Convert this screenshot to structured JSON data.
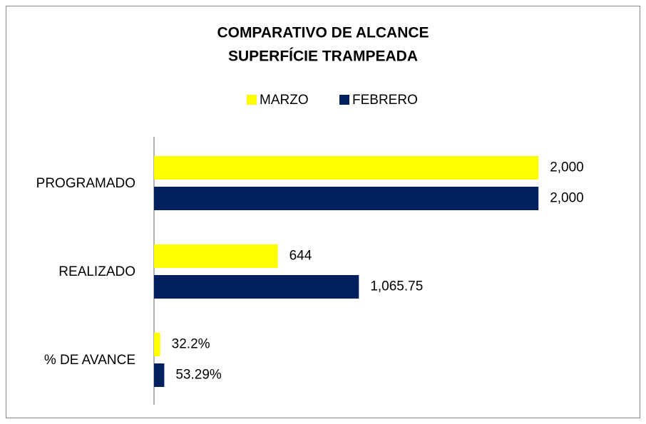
{
  "chart_data": {
    "type": "hbar",
    "title": "COMPARATIVO DE ALCANCE",
    "subtitle": "SUPERFÍCIE TRAMPEADA",
    "categories": [
      "PROGRAMADO",
      "REALIZADO",
      "% DE AVANCE"
    ],
    "series": [
      {
        "name": "MARZO",
        "color": "#ffff00",
        "values": [
          2000,
          644,
          32.2
        ],
        "value_labels": [
          "2,000",
          "644",
          "32.2%"
        ]
      },
      {
        "name": "FEBRERO",
        "color": "#002060",
        "values": [
          2000,
          1065.75,
          53.29
        ],
        "value_labels": [
          "2,000",
          "1,065.75",
          "53.29%"
        ]
      }
    ],
    "xlim": [
      0,
      2500
    ],
    "legend": "top"
  }
}
